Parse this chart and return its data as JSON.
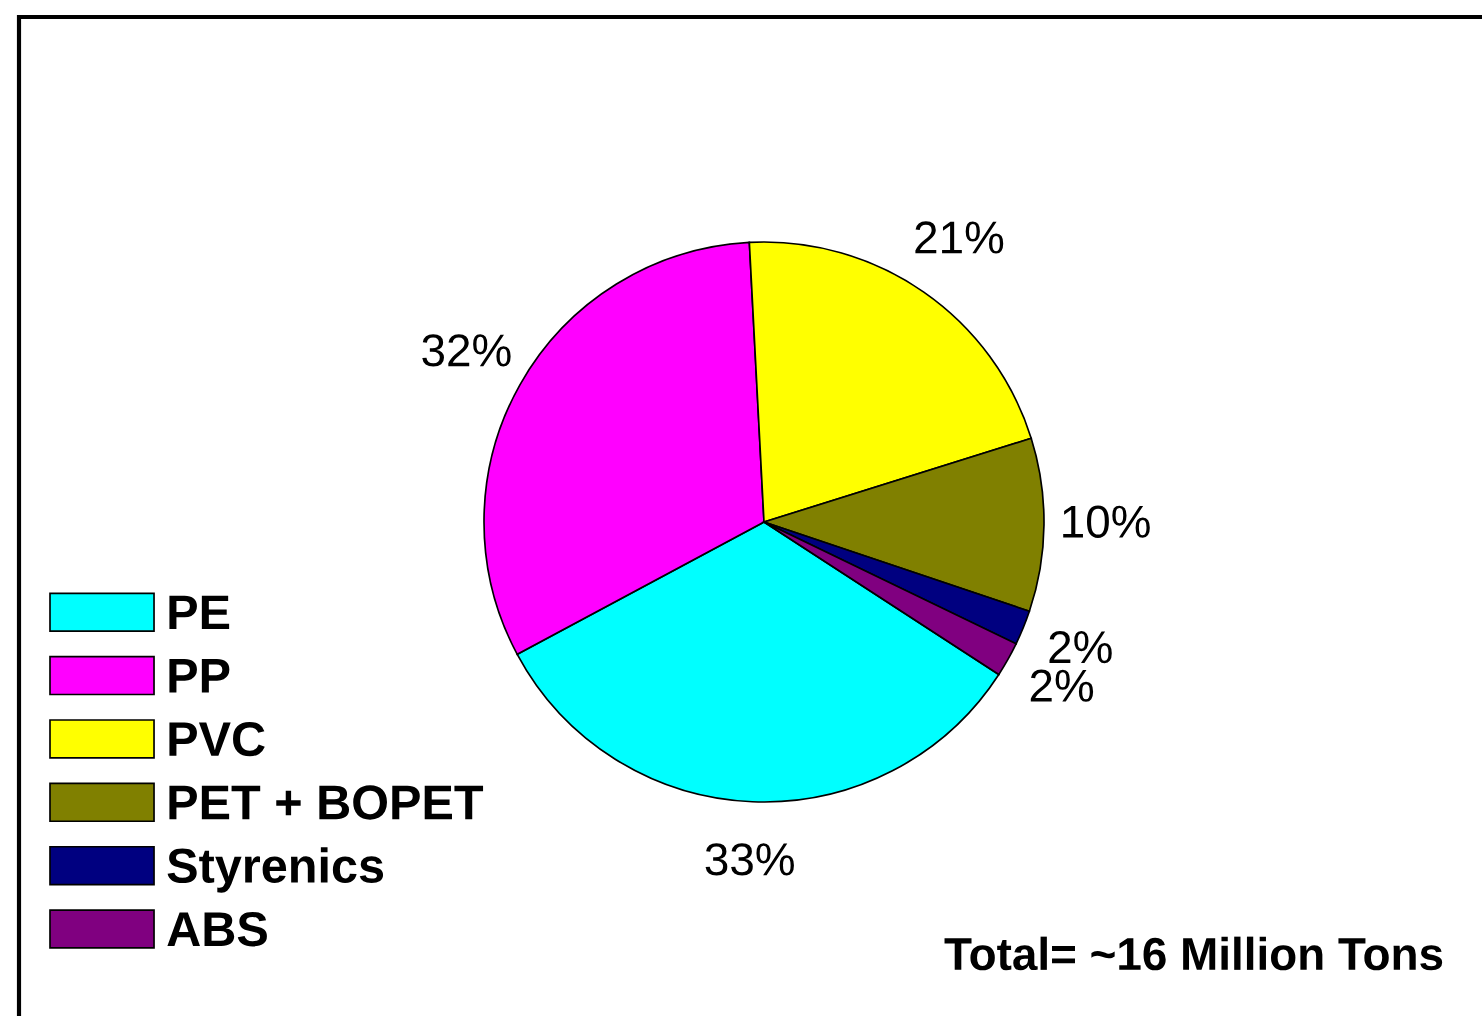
{
  "chart_data": {
    "type": "pie",
    "categories": [
      "PE",
      "PP",
      "PVC",
      "PET + BOPET",
      "Styrenics",
      "ABS"
    ],
    "values": [
      33,
      32,
      21,
      10,
      2,
      2
    ],
    "colors": [
      "#00ffff",
      "#ff00ff",
      "#ffff00",
      "#808000",
      "#000080",
      "#800080"
    ],
    "value_labels": [
      "33%",
      "32%",
      "21%",
      "10%",
      "2%",
      "2%"
    ],
    "legend": "bottom left",
    "annotations": [
      "Total= ~16 Million Tons"
    ]
  }
}
